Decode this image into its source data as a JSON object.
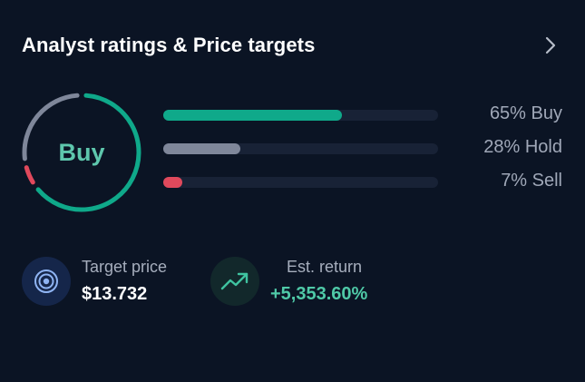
{
  "header": {
    "title": "Analyst ratings & Price targets",
    "chevron_icon": "chevron-right-icon"
  },
  "consensus": {
    "label": "Buy",
    "label_color": "#5ec7ad"
  },
  "ratings": [
    {
      "name": "Buy",
      "percent": 65,
      "text": "65% Buy",
      "color": "#0fa98a"
    },
    {
      "name": "Hold",
      "percent": 28,
      "text": "28% Hold",
      "color": "#7f879a"
    },
    {
      "name": "Sell",
      "percent": 7,
      "text": "7% Sell",
      "color": "#e0495c"
    }
  ],
  "target_price": {
    "label": "Target price",
    "value": "$13.732",
    "icon": "target-icon"
  },
  "est_return": {
    "label": "Est. return",
    "value": "+5,353.60%",
    "value_color": "#4fc9a7",
    "icon": "trend-up-icon"
  }
}
